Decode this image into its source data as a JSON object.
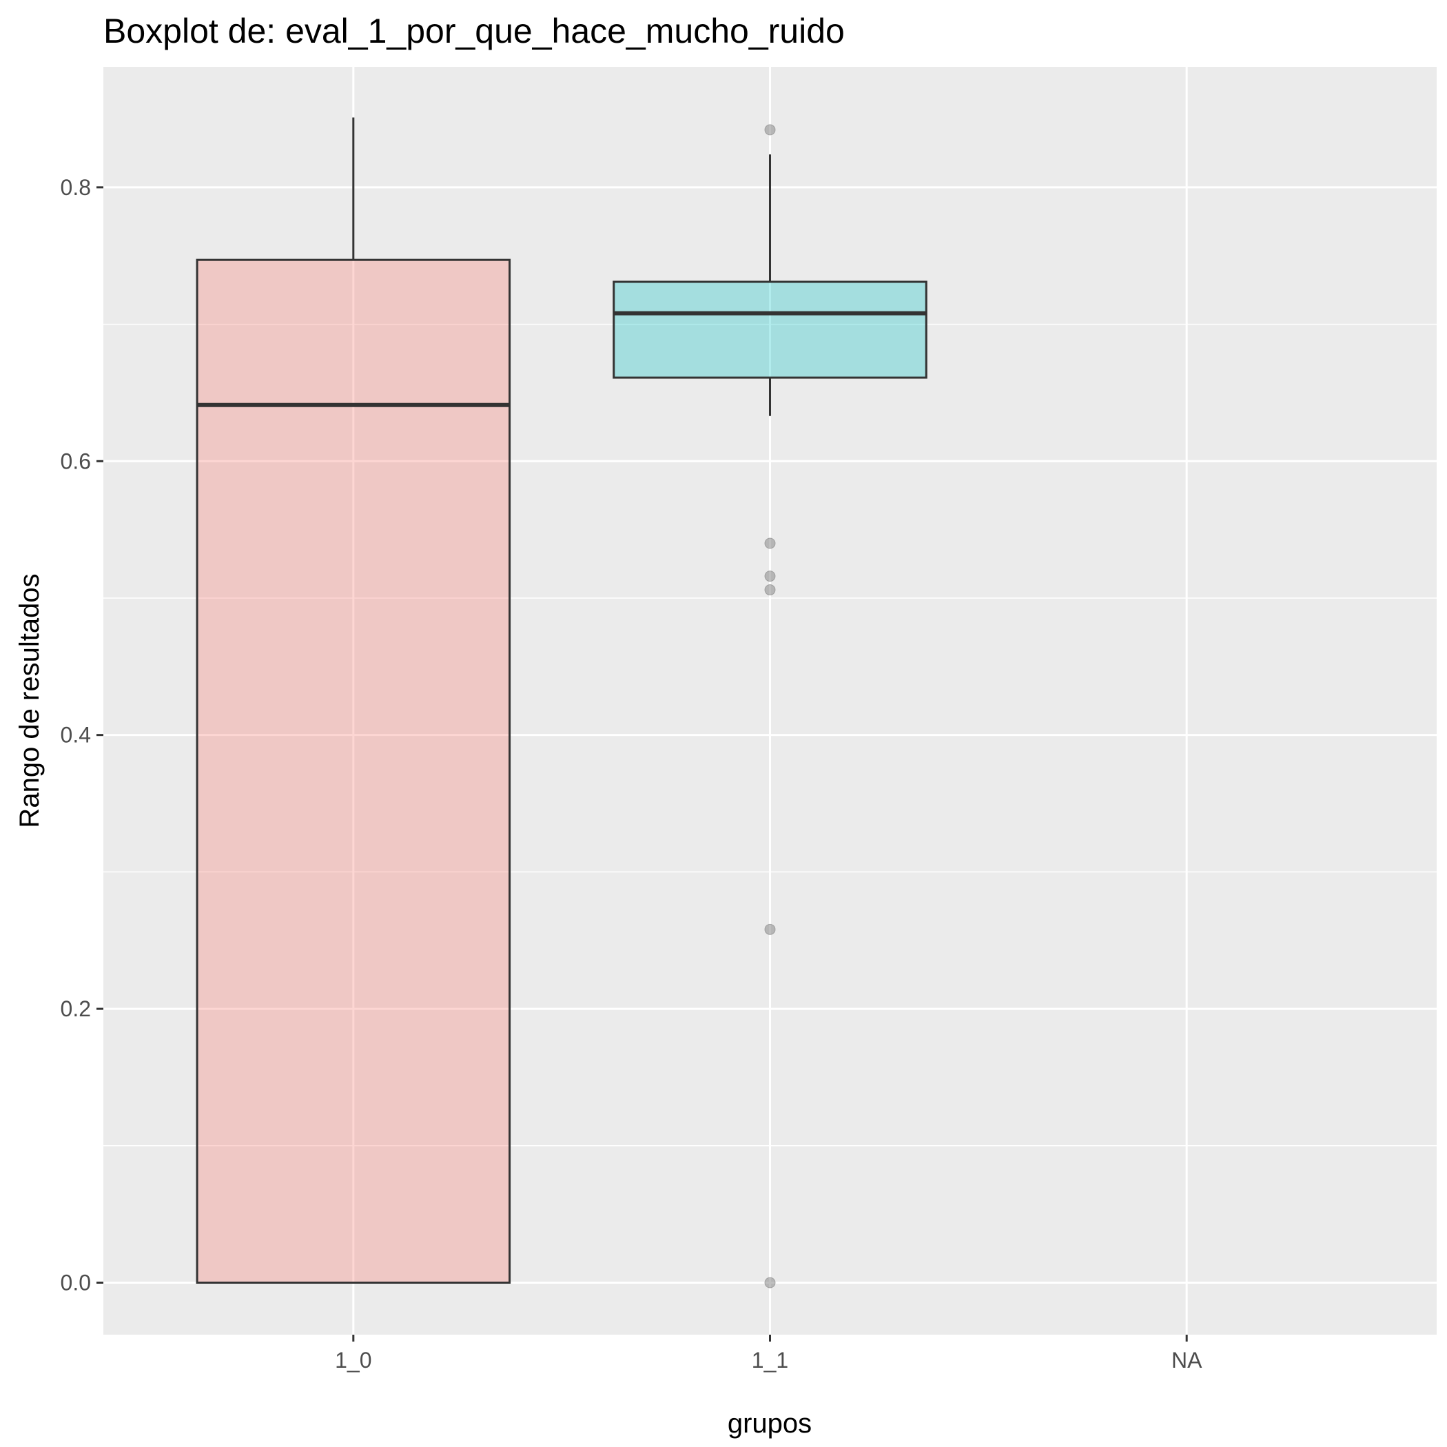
{
  "chart_data": {
    "type": "boxplot",
    "title": "Boxplot de: eval_1_por_que_hace_mucho_ruido",
    "xlabel": "grupos",
    "ylabel": "Rango de resultados",
    "categories": [
      "1_0",
      "1_1",
      "NA"
    ],
    "ylim": [
      -0.038,
      0.888
    ],
    "y_ticks": [
      {
        "value": 0.0,
        "label": "0.0"
      },
      {
        "value": 0.2,
        "label": "0.2"
      },
      {
        "value": 0.4,
        "label": "0.4"
      },
      {
        "value": 0.6,
        "label": "0.6"
      },
      {
        "value": 0.8,
        "label": "0.8"
      }
    ],
    "grid": true,
    "legend": "none",
    "boxes": [
      {
        "category": "1_0",
        "min": 0.0,
        "q1": 0.0,
        "median": 0.641,
        "q3": 0.747,
        "max": 0.851,
        "fill": "#F8766D",
        "outliers": []
      },
      {
        "category": "1_1",
        "min": 0.633,
        "q1": 0.661,
        "median": 0.708,
        "q3": 0.731,
        "max": 0.824,
        "fill": "#00BFC4",
        "outliers": [
          0.842,
          0.54,
          0.516,
          0.506,
          0.258,
          0.0
        ]
      }
    ],
    "colors": {
      "panel_background": "#EBEBEB",
      "grid_line": "#FFFFFF",
      "box_outline": "#333333",
      "outlier": "#808080"
    }
  }
}
